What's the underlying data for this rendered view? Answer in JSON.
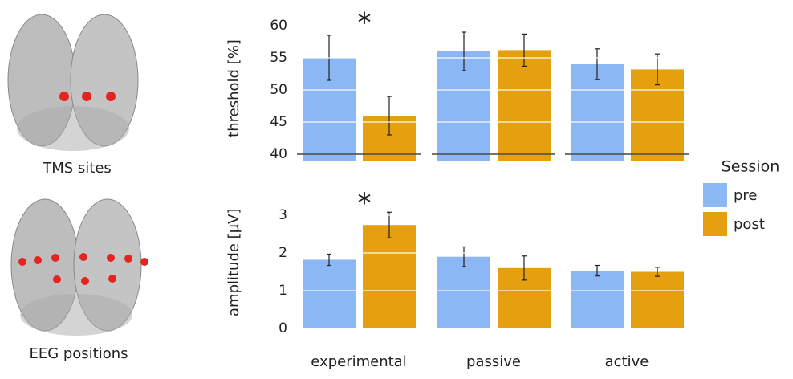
{
  "figure": {
    "tms_label": "TMS sites",
    "eeg_label": "EEG positions"
  },
  "chart_data": {
    "type": "bar",
    "categories": [
      "experimental",
      "passive",
      "active"
    ],
    "legend_title": "Session",
    "series": [
      {
        "name": "pre",
        "color": "#8bb8f5"
      },
      {
        "name": "post",
        "color": "#e5a010"
      }
    ],
    "panels": [
      {
        "y_label": "threshold [%]",
        "ylim": [
          39,
          61.5
        ],
        "yticks": [
          40,
          45,
          50,
          55,
          60
        ],
        "reference_line": 40,
        "annotation": "*",
        "series": [
          {
            "values": [
              55,
              56,
              54
            ],
            "errors": [
              3.5,
              3,
              2.4
            ]
          },
          {
            "values": [
              46,
              56.2,
              53.2
            ],
            "errors": [
              3,
              2.5,
              2.4
            ]
          }
        ]
      },
      {
        "y_label": "amplitude [µV]",
        "ylim": [
          0,
          3.5
        ],
        "yticks": [
          0,
          1,
          2,
          3
        ],
        "annotation": "*",
        "series": [
          {
            "values": [
              1.82,
              1.9,
              1.53
            ],
            "errors": [
              0.15,
              0.26,
              0.14
            ]
          },
          {
            "values": [
              2.74,
              1.6,
              1.5
            ],
            "errors": [
              0.34,
              0.32,
              0.12
            ]
          }
        ]
      }
    ]
  }
}
